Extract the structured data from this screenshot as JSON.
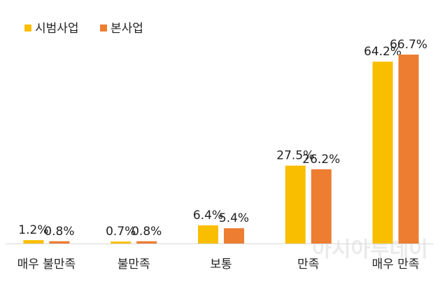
{
  "chart_data": {
    "type": "bar",
    "categories": [
      "매우 불만족",
      "불만족",
      "보통",
      "만족",
      "매우 만족"
    ],
    "series": [
      {
        "name": "시범사업",
        "color": "#f9be00",
        "values": [
          1.2,
          0.7,
          6.4,
          27.5,
          64.2
        ],
        "value_labels": [
          "1.2%",
          "0.7%",
          "6.4%",
          "27.5%",
          "64.2%"
        ]
      },
      {
        "name": "본사업",
        "color": "#ed7d31",
        "values": [
          0.8,
          0.8,
          5.4,
          26.2,
          66.7
        ],
        "value_labels": [
          "0.8%",
          "0.8%",
          "5.4%",
          "26.2%",
          "66.7%"
        ]
      }
    ],
    "legend": "top-left",
    "watermark": "아시아투데이"
  }
}
